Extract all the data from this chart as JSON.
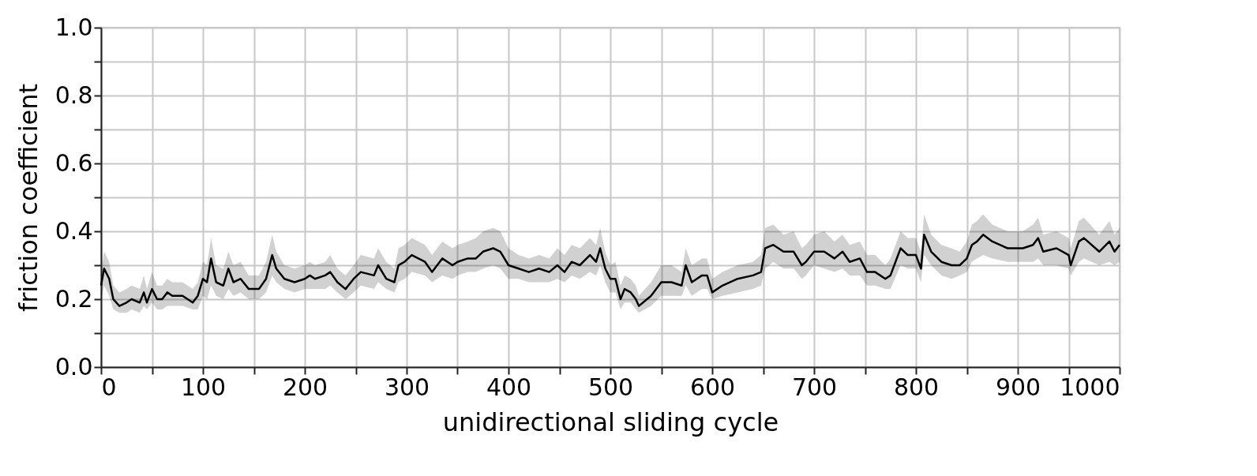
{
  "chart_data": {
    "type": "line",
    "xlabel": "unidirectional sliding cycle",
    "ylabel": "friction coefficient",
    "xlim": [
      0,
      1000
    ],
    "ylim": [
      0.0,
      1.0
    ],
    "xticks": [
      0,
      {
        "value": 50,
        "label": null
      },
      100,
      {
        "value": 150,
        "label": null
      },
      200,
      {
        "value": 250,
        "label": null
      },
      300,
      {
        "value": 350,
        "label": null
      },
      400,
      {
        "value": 450,
        "label": null
      },
      500,
      {
        "value": 550,
        "label": null
      },
      600,
      {
        "value": 650,
        "label": null
      },
      700,
      {
        "value": 750,
        "label": null
      },
      800,
      {
        "value": 850,
        "label": null
      },
      900,
      {
        "value": 950,
        "label": null
      },
      1000
    ],
    "yticks": [
      {
        "value": 0.0,
        "label": "0.0"
      },
      {
        "value": 0.1,
        "label": null
      },
      0.2,
      {
        "value": 0.3,
        "label": null
      },
      0.4,
      {
        "value": 0.5,
        "label": null
      },
      0.6,
      {
        "value": 0.7,
        "label": null
      },
      0.8,
      {
        "value": 0.9,
        "label": null
      },
      {
        "value": 1.0,
        "label": "1.0"
      }
    ],
    "grid": true,
    "marker": "none",
    "line_style": "solid",
    "series": [
      {
        "color": "#000000",
        "x": [
          0,
          3,
          8,
          12,
          18,
          25,
          30,
          38,
          42,
          45,
          50,
          55,
          60,
          65,
          70,
          80,
          90,
          95,
          100,
          104,
          108,
          113,
          120,
          125,
          130,
          137,
          145,
          155,
          162,
          168,
          172,
          180,
          190,
          200,
          205,
          210,
          220,
          225,
          232,
          240,
          248,
          255,
          268,
          272,
          280,
          288,
          292,
          298,
          305,
          318,
          325,
          335,
          345,
          350,
          360,
          368,
          375,
          385,
          392,
          400,
          410,
          420,
          430,
          440,
          448,
          455,
          462,
          470,
          480,
          486,
          490,
          495,
          500,
          505,
          510,
          514,
          520,
          525,
          528,
          540,
          550,
          560,
          570,
          574,
          580,
          590,
          595,
          600,
          610,
          625,
          640,
          648,
          652,
          660,
          670,
          680,
          688,
          692,
          700,
          710,
          720,
          728,
          735,
          745,
          752,
          760,
          770,
          775,
          785,
          792,
          800,
          805,
          808,
          815,
          825,
          835,
          843,
          850,
          855,
          860,
          866,
          875,
          890,
          905,
          915,
          920,
          925,
          938,
          950,
          952,
          960,
          965,
          980,
          990,
          995,
          1000
        ],
        "values": [
          0.24,
          0.29,
          0.26,
          0.2,
          0.18,
          0.19,
          0.2,
          0.19,
          0.22,
          0.19,
          0.23,
          0.2,
          0.2,
          0.22,
          0.21,
          0.21,
          0.19,
          0.21,
          0.26,
          0.25,
          0.32,
          0.25,
          0.24,
          0.29,
          0.25,
          0.26,
          0.23,
          0.23,
          0.26,
          0.33,
          0.29,
          0.26,
          0.25,
          0.26,
          0.27,
          0.26,
          0.27,
          0.28,
          0.25,
          0.23,
          0.26,
          0.28,
          0.27,
          0.3,
          0.26,
          0.25,
          0.3,
          0.31,
          0.33,
          0.31,
          0.28,
          0.32,
          0.3,
          0.31,
          0.32,
          0.32,
          0.34,
          0.35,
          0.34,
          0.3,
          0.29,
          0.28,
          0.29,
          0.28,
          0.3,
          0.28,
          0.31,
          0.3,
          0.33,
          0.31,
          0.35,
          0.29,
          0.26,
          0.26,
          0.2,
          0.23,
          0.22,
          0.2,
          0.18,
          0.21,
          0.25,
          0.25,
          0.24,
          0.3,
          0.25,
          0.27,
          0.27,
          0.22,
          0.24,
          0.26,
          0.27,
          0.28,
          0.35,
          0.36,
          0.34,
          0.34,
          0.3,
          0.31,
          0.34,
          0.34,
          0.32,
          0.34,
          0.31,
          0.32,
          0.28,
          0.28,
          0.26,
          0.27,
          0.35,
          0.33,
          0.33,
          0.29,
          0.39,
          0.34,
          0.31,
          0.3,
          0.3,
          0.32,
          0.36,
          0.37,
          0.39,
          0.37,
          0.35,
          0.35,
          0.36,
          0.38,
          0.34,
          0.35,
          0.33,
          0.3,
          0.37,
          0.38,
          0.34,
          0.37,
          0.34,
          0.36
        ],
        "lower": [
          0.2,
          0.24,
          0.21,
          0.17,
          0.16,
          0.16,
          0.17,
          0.16,
          0.18,
          0.17,
          0.19,
          0.17,
          0.17,
          0.18,
          0.18,
          0.18,
          0.17,
          0.17,
          0.21,
          0.2,
          0.24,
          0.21,
          0.2,
          0.23,
          0.21,
          0.22,
          0.2,
          0.2,
          0.22,
          0.27,
          0.25,
          0.23,
          0.22,
          0.23,
          0.23,
          0.23,
          0.23,
          0.24,
          0.22,
          0.2,
          0.22,
          0.24,
          0.23,
          0.25,
          0.23,
          0.22,
          0.25,
          0.26,
          0.28,
          0.27,
          0.25,
          0.27,
          0.26,
          0.27,
          0.28,
          0.28,
          0.29,
          0.3,
          0.29,
          0.26,
          0.26,
          0.25,
          0.25,
          0.25,
          0.26,
          0.25,
          0.27,
          0.26,
          0.28,
          0.27,
          0.3,
          0.25,
          0.22,
          0.22,
          0.17,
          0.19,
          0.19,
          0.17,
          0.16,
          0.18,
          0.21,
          0.21,
          0.21,
          0.24,
          0.21,
          0.23,
          0.23,
          0.2,
          0.21,
          0.22,
          0.23,
          0.24,
          0.29,
          0.31,
          0.29,
          0.29,
          0.26,
          0.27,
          0.3,
          0.29,
          0.28,
          0.29,
          0.27,
          0.27,
          0.24,
          0.24,
          0.23,
          0.23,
          0.3,
          0.29,
          0.29,
          0.25,
          0.33,
          0.3,
          0.27,
          0.26,
          0.27,
          0.28,
          0.31,
          0.32,
          0.33,
          0.32,
          0.31,
          0.31,
          0.31,
          0.32,
          0.3,
          0.3,
          0.29,
          0.27,
          0.31,
          0.32,
          0.3,
          0.31,
          0.3,
          0.31
        ],
        "upper": [
          0.28,
          0.34,
          0.31,
          0.24,
          0.22,
          0.23,
          0.24,
          0.23,
          0.27,
          0.23,
          0.28,
          0.24,
          0.24,
          0.26,
          0.25,
          0.25,
          0.23,
          0.25,
          0.31,
          0.3,
          0.38,
          0.3,
          0.29,
          0.34,
          0.3,
          0.31,
          0.27,
          0.27,
          0.31,
          0.39,
          0.34,
          0.3,
          0.29,
          0.3,
          0.31,
          0.3,
          0.31,
          0.33,
          0.29,
          0.27,
          0.3,
          0.33,
          0.32,
          0.35,
          0.31,
          0.29,
          0.35,
          0.36,
          0.38,
          0.36,
          0.33,
          0.37,
          0.35,
          0.36,
          0.37,
          0.38,
          0.4,
          0.41,
          0.4,
          0.35,
          0.33,
          0.32,
          0.33,
          0.32,
          0.35,
          0.33,
          0.36,
          0.35,
          0.38,
          0.36,
          0.41,
          0.34,
          0.3,
          0.31,
          0.24,
          0.27,
          0.26,
          0.24,
          0.21,
          0.25,
          0.3,
          0.3,
          0.28,
          0.35,
          0.3,
          0.32,
          0.32,
          0.26,
          0.28,
          0.3,
          0.31,
          0.33,
          0.41,
          0.42,
          0.39,
          0.4,
          0.35,
          0.36,
          0.39,
          0.4,
          0.37,
          0.39,
          0.36,
          0.37,
          0.33,
          0.33,
          0.3,
          0.32,
          0.4,
          0.38,
          0.38,
          0.34,
          0.45,
          0.39,
          0.36,
          0.35,
          0.34,
          0.37,
          0.42,
          0.43,
          0.45,
          0.42,
          0.4,
          0.4,
          0.42,
          0.44,
          0.39,
          0.4,
          0.38,
          0.35,
          0.43,
          0.44,
          0.39,
          0.43,
          0.39,
          0.41
        ]
      }
    ]
  }
}
